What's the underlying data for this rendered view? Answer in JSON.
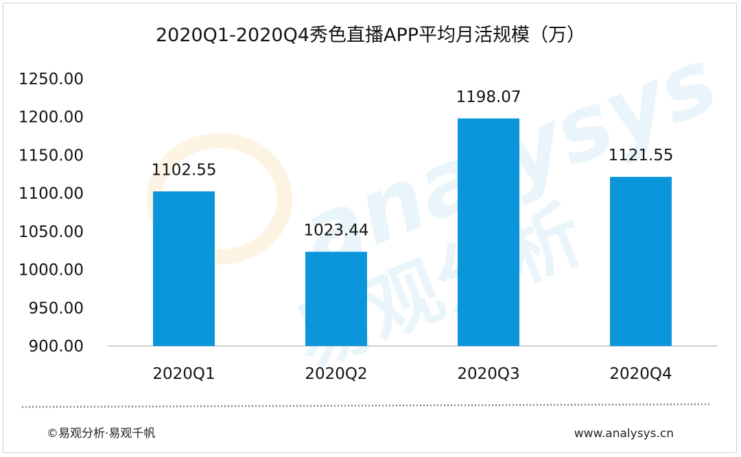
{
  "chart_data": {
    "type": "bar",
    "title": "2020Q1-2020Q4秀色直播APP平均月活规模（万）",
    "categories": [
      "2020Q1",
      "2020Q2",
      "2020Q3",
      "2020Q4"
    ],
    "values": [
      1102.55,
      1023.44,
      1198.07,
      1121.55
    ],
    "data_labels": [
      "1102.55",
      "1023.44",
      "1198.07",
      "1121.55"
    ],
    "y_ticks": [
      "900.00",
      "950.00",
      "1000.00",
      "1050.00",
      "1100.00",
      "1150.00",
      "1200.00",
      "1250.00"
    ],
    "ylim": [
      900,
      1250
    ],
    "xlabel": "",
    "ylabel": "",
    "grid": false,
    "legend": "none",
    "bar_color": "#0b96dc"
  },
  "watermark": {
    "logo_text": "analysys",
    "cn_text": "易观分析"
  },
  "footer": {
    "left": "©易观分析·易观千帆",
    "right": "www.analysys.cn"
  }
}
